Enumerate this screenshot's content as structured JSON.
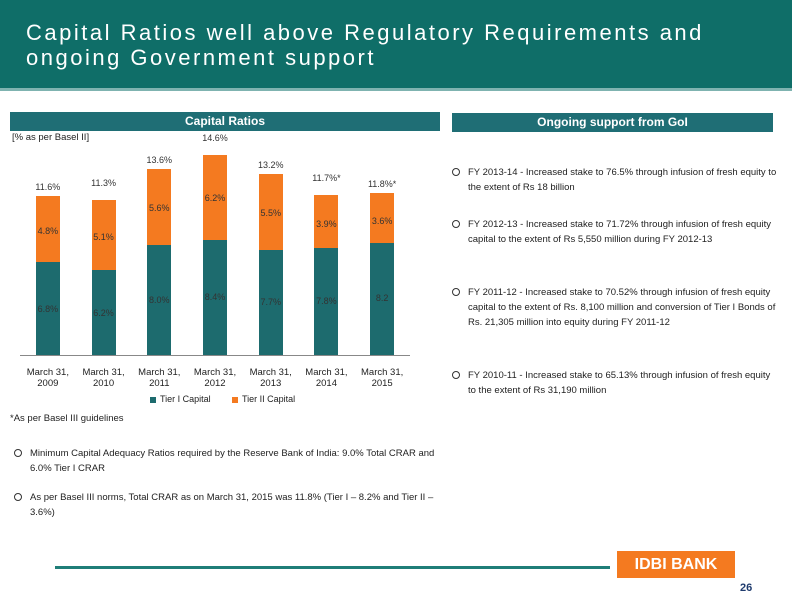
{
  "header": {
    "title": "Capital Ratios well above Regulatory Requirements and ongoing Government support"
  },
  "chart_data": {
    "type": "stacked-bar",
    "title": "Capital Ratios",
    "subtitle": "[% as per Basel II]",
    "categories": [
      "March 31, 2009",
      "March 31, 2010",
      "March 31, 2011",
      "March 31, 2012",
      "March 31, 2013",
      "March 31, 2014",
      "March 31, 2015"
    ],
    "series": [
      {
        "name": "Tier I Capital",
        "color": "#1d6b6e",
        "values": [
          6.8,
          6.2,
          8.0,
          8.4,
          7.7,
          7.8,
          8.2
        ],
        "value_labels": [
          "6.8%",
          "6.2%",
          "8.0%",
          "8.4%",
          "7.7%",
          "7.8%",
          "8.2"
        ]
      },
      {
        "name": "Tier II Capital",
        "color": "#f47a20",
        "values": [
          4.8,
          5.1,
          5.6,
          6.2,
          5.5,
          3.9,
          3.6
        ],
        "value_labels": [
          "4.8%",
          "5.1%",
          "5.6%",
          "6.2%",
          "5.5%",
          "3.9%",
          "3.6%"
        ]
      }
    ],
    "total_labels": [
      "11.6%",
      "11.3%",
      "13.6%",
      "14.6%",
      "13.2%",
      "11.7%*",
      "11.8%*"
    ],
    "footnote": "*As per Basel III guidelines"
  },
  "left_bullets": [
    "Minimum Capital Adequacy Ratios required by the Reserve Bank of India: 9.0% Total CRAR and 6.0% Tier I CRAR",
    "As per Basel III norms, Total CRAR as on March 31, 2015 was 11.8% (Tier I – 8.2% and Tier II – 3.6%)"
  ],
  "right_panel": {
    "title": "Ongoing support from GoI",
    "bullets": [
      "FY 2013-14 - Increased stake to 76.5% through infusion of fresh equity to the extent of Rs 18 billion",
      "FY 2012-13 - Increased stake to 71.72% through infusion of fresh equity capital to the extent of Rs  5,550 million during FY 2012-13",
      "FY 2011-12 - Increased stake to 70.52% through infusion of fresh equity capital to the extent of Rs. 8,100 million and conversion of Tier I Bonds of Rs. 21,305 million into equity during FY 2011-12",
      "FY 2010-11 - Increased stake to 65.13% through infusion of fresh equity to the extent of Rs 31,190 million"
    ]
  },
  "footer": {
    "logo": "IDBI BANK",
    "page": "26"
  }
}
